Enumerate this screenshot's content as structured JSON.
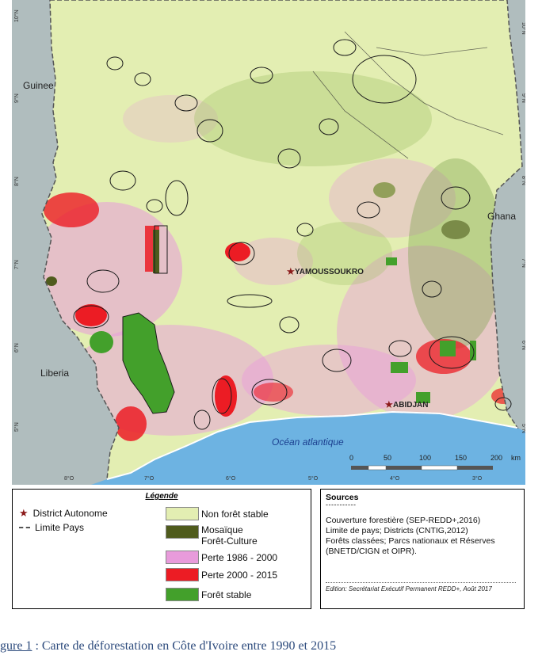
{
  "map": {
    "countries": [
      "Guinee",
      "Ghana",
      "Liberia"
    ],
    "ocean_label": "Océan atlantique",
    "cities": [
      "YAMOUSSOUKRO",
      "ABIDJAN"
    ],
    "lat_labels": [
      "10°N",
      "9°N",
      "8°N",
      "7°N",
      "6°N",
      "5°N"
    ],
    "lon_labels": [
      "8°O",
      "7°O",
      "6°O",
      "5°O",
      "4°O",
      "3°O"
    ],
    "scale_bar": {
      "ticks": [
        "0",
        "50",
        "100",
        "150",
        "200"
      ],
      "unit": "km"
    },
    "colors": {
      "non_forest_stable": "#e3eeb2",
      "mosaic_forest_crop": "#4f5b1d",
      "loss_1986_2000": "#e89bdb",
      "loss_2000_2015": "#ec1c24",
      "stable_forest": "#43a02b",
      "ocean": "#6db3e2",
      "neighbor_countries": "#b7c4c6"
    }
  },
  "legend": {
    "title": "Légende",
    "district_label": "District Autonome",
    "border_label": "Limite Pays",
    "classes": [
      {
        "label": "Non forêt stable",
        "color": "#e3eeb2"
      },
      {
        "label": "Mosaïque Forêt-Culture",
        "line1": "Mosaïque",
        "line2": "Forêt-Culture",
        "color": "#4f5b1d"
      },
      {
        "label": "Perte 1986 - 2000",
        "color": "#e89bdb"
      },
      {
        "label": "Perte 2000 - 2015",
        "color": "#ec1c24"
      },
      {
        "label": "Forêt stable",
        "color": "#43a02b"
      }
    ]
  },
  "sources": {
    "title": "Sources",
    "dashes": "-----------",
    "lines": [
      "Couverture forestière (SEP-REDD+,2016)",
      "Limite de pays; Districts (CNTIG,2012)",
      "Forêts classées; Parcs nationaux et Réserves",
      "(BNETD/CIGN et OIPR)."
    ],
    "edition": "Edition: Secrétariat Exécutif Permanent REDD+, Août 2017"
  },
  "caption": {
    "figure": "gure 1",
    "text": " : Carte de déforestation en Côte d'Ivoire entre 1990 et 2015"
  }
}
